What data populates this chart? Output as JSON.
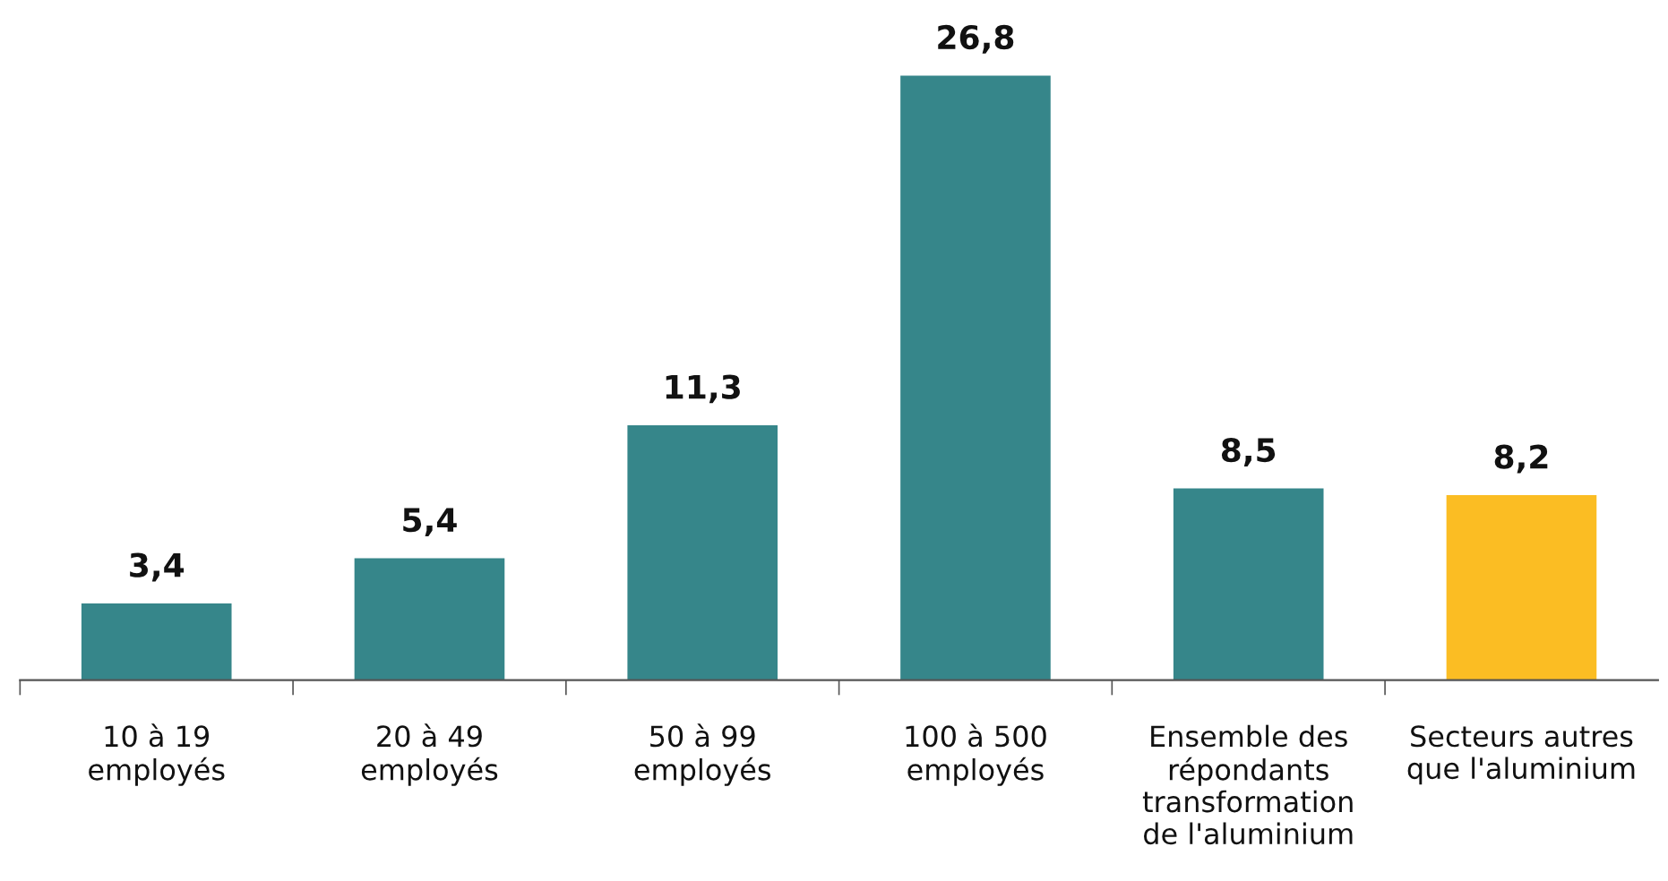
{
  "chart_data": {
    "type": "bar",
    "categories": [
      "10 à 19\nemployés",
      "20 à 49\nemployés",
      "50 à 99\nemployés",
      "100 à 500\nemployés",
      "Ensemble des\nrépondants\ntransformation\nde l'aluminium",
      "Secteurs autres\nque l'aluminium"
    ],
    "values": [
      3.4,
      5.4,
      11.3,
      26.8,
      8.5,
      8.2
    ],
    "value_labels": [
      "3,4",
      "5,4",
      "11,3",
      "26,8",
      "8,5",
      "8,2"
    ],
    "colors": [
      "#36868a",
      "#36868a",
      "#36868a",
      "#36868a",
      "#36868a",
      "#fbbd23"
    ],
    "grid": false,
    "legend": false
  }
}
